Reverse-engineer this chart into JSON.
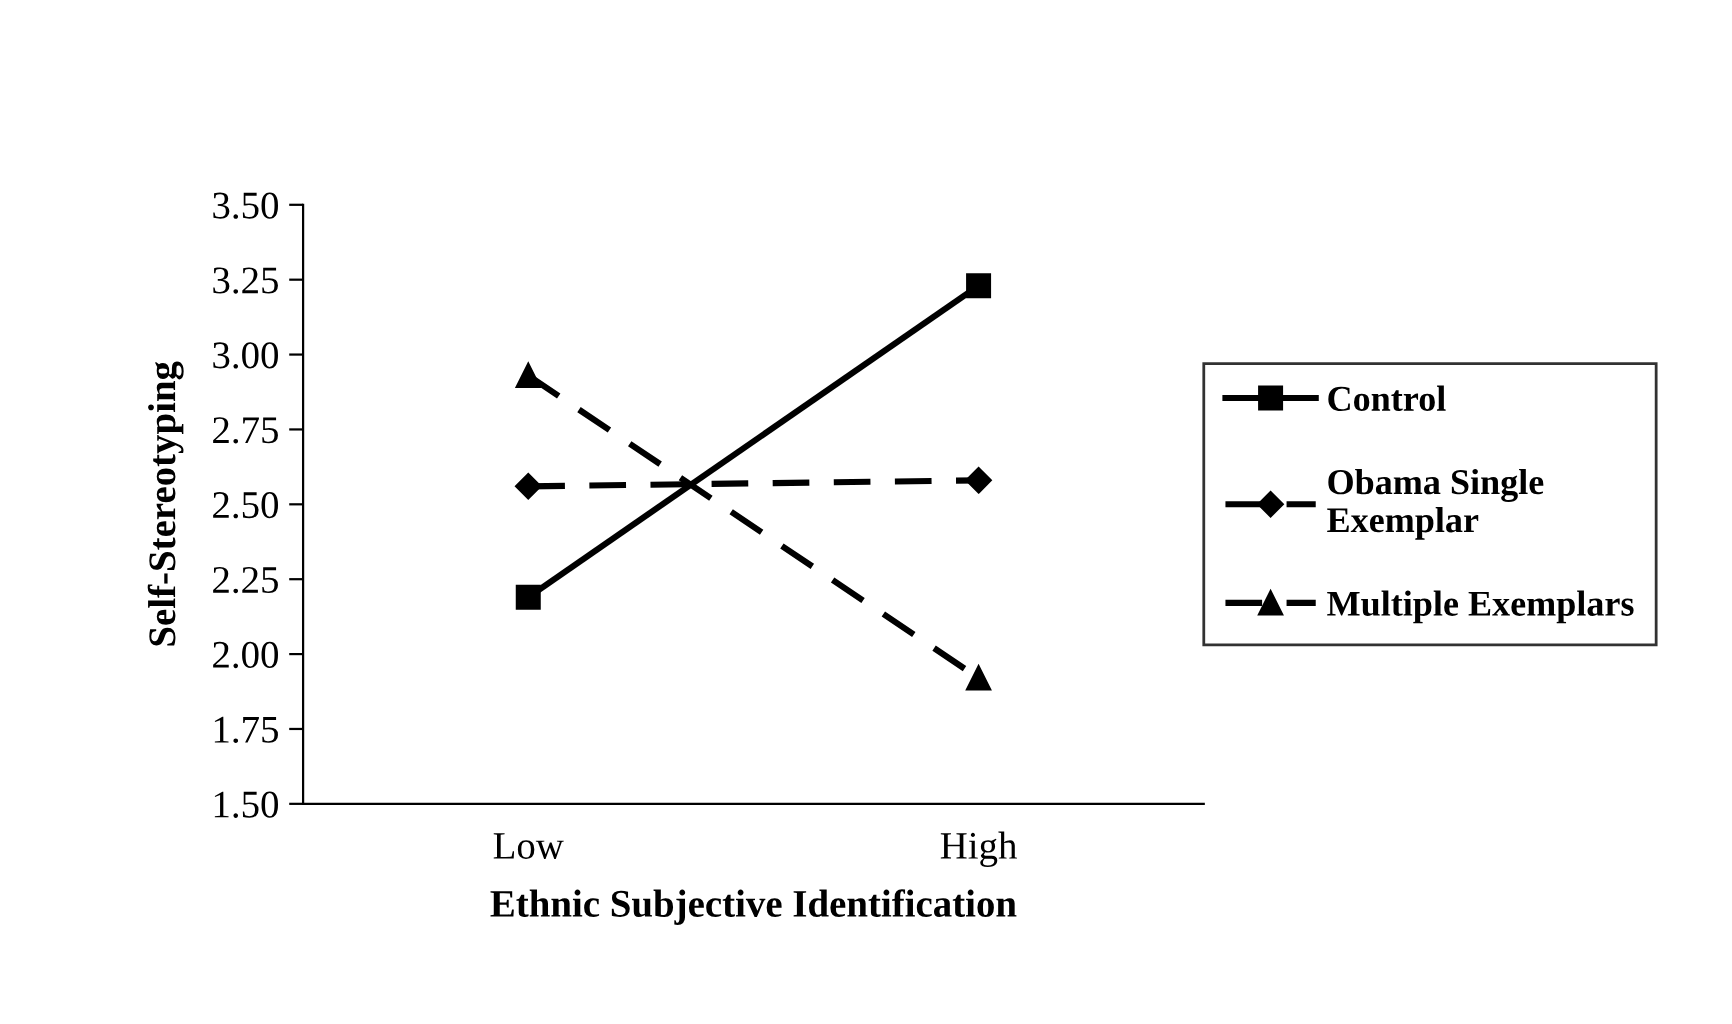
{
  "chart_data": {
    "type": "line",
    "xlabel": "Ethnic Subjective Identification",
    "ylabel": "Self-Stereotyping",
    "categories": [
      "Low",
      "High"
    ],
    "series": [
      {
        "name": "Control",
        "color": "#000000",
        "values": [
          2.19,
          3.23
        ],
        "marker": "square",
        "line_style": "solid"
      },
      {
        "name": "Obama Single\nExemplar",
        "color": "#000000",
        "values": [
          2.56,
          2.58
        ],
        "marker": "diamond",
        "line_style": "dashed"
      },
      {
        "name": "Multiple Exemplars",
        "color": "#000000",
        "values": [
          2.93,
          1.92
        ],
        "marker": "triangle",
        "line_style": "dashed"
      }
    ],
    "ylim": [
      1.5,
      3.5
    ],
    "yticks": [
      {
        "value": 1.5,
        "label": "1.50"
      },
      {
        "value": 1.75,
        "label": "1.75"
      },
      {
        "value": 2.0,
        "label": "2.00"
      },
      {
        "value": 2.25,
        "label": "2.25"
      },
      {
        "value": 2.5,
        "label": "2.50"
      },
      {
        "value": 2.75,
        "label": "2.75"
      },
      {
        "value": 3.0,
        "label": "3.00"
      },
      {
        "value": 3.25,
        "label": "3.25"
      },
      {
        "value": 3.5,
        "label": "3.50"
      }
    ],
    "grid": false,
    "legend": "right"
  }
}
